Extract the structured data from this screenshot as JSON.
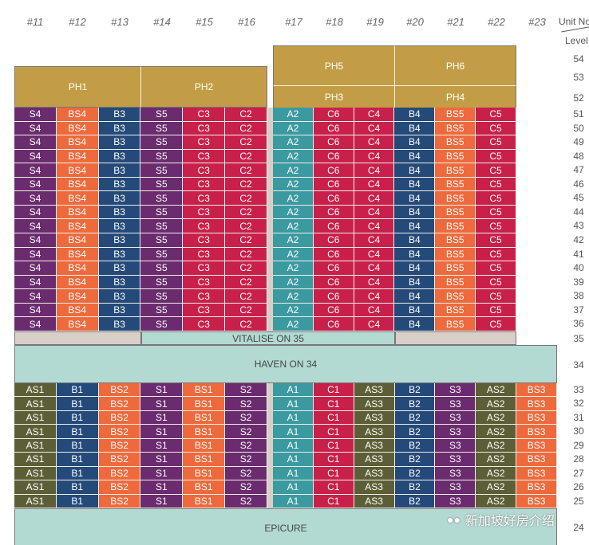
{
  "columns": [
    "#11",
    "#12",
    "#13",
    "#14",
    "#15",
    "#16",
    "#17",
    "#18",
    "#19",
    "#20",
    "#21",
    "#22",
    "#23"
  ],
  "header": {
    "unit_no": "Unit No",
    "level": "Level"
  },
  "penthouses": {
    "ph1": "PH1",
    "ph2": "PH2",
    "ph3": "PH3",
    "ph4": "PH4",
    "ph5": "PH5",
    "ph6": "PH6"
  },
  "upper": {
    "levels": [
      "51",
      "50",
      "49",
      "48",
      "47",
      "46",
      "45",
      "44",
      "43",
      "42",
      "41",
      "40",
      "39",
      "38",
      "37",
      "36"
    ],
    "left_units": [
      "S4",
      "BS4",
      "B3",
      "S5",
      "C3",
      "C2"
    ],
    "right_units": [
      "A2",
      "C6",
      "C4",
      "B4",
      "BS5",
      "C5"
    ]
  },
  "lower": {
    "levels": [
      "33",
      "32",
      "31",
      "30",
      "29",
      "28",
      "27",
      "26",
      "25"
    ],
    "left_units": [
      "AS1",
      "B1",
      "BS2",
      "S1",
      "BS1",
      "S2"
    ],
    "right_units": [
      "A1",
      "C1",
      "AS3",
      "B2",
      "S3",
      "AS2",
      "BS3"
    ]
  },
  "amenities": {
    "vitalise": "VITALISE ON 35",
    "haven": "HAVEN ON 34",
    "epicure": "EPICURE"
  },
  "levels_extra": {
    "l54": "54",
    "l53": "53",
    "l52": "52",
    "l35": "35",
    "l34": "34",
    "l24": "24"
  },
  "watermark": "新加坡好房介绍",
  "unit_colors": {
    "S4": "#6a2c6e",
    "BS4": "#ee6a3c",
    "B3": "#244a7a",
    "S5": "#6a2c6e",
    "C3": "#c8204a",
    "C2": "#c8204a",
    "A2": "#3a9aa0",
    "C6": "#c8204a",
    "C4": "#c8204a",
    "B4": "#244a7a",
    "BS5": "#ee6a3c",
    "C5": "#c8204a",
    "AS1": "#5c5e36",
    "B1": "#244a7a",
    "BS2": "#ee6a3c",
    "S1": "#6a2c6e",
    "BS1": "#ee6a3c",
    "S2": "#6a2c6e",
    "A1": "#3a9aa0",
    "C1": "#c8204a",
    "AS3": "#5c5e36",
    "B2": "#244a7a",
    "S3": "#6a2c6e",
    "AS2": "#5c5e36",
    "BS3": "#ee6a3c"
  }
}
